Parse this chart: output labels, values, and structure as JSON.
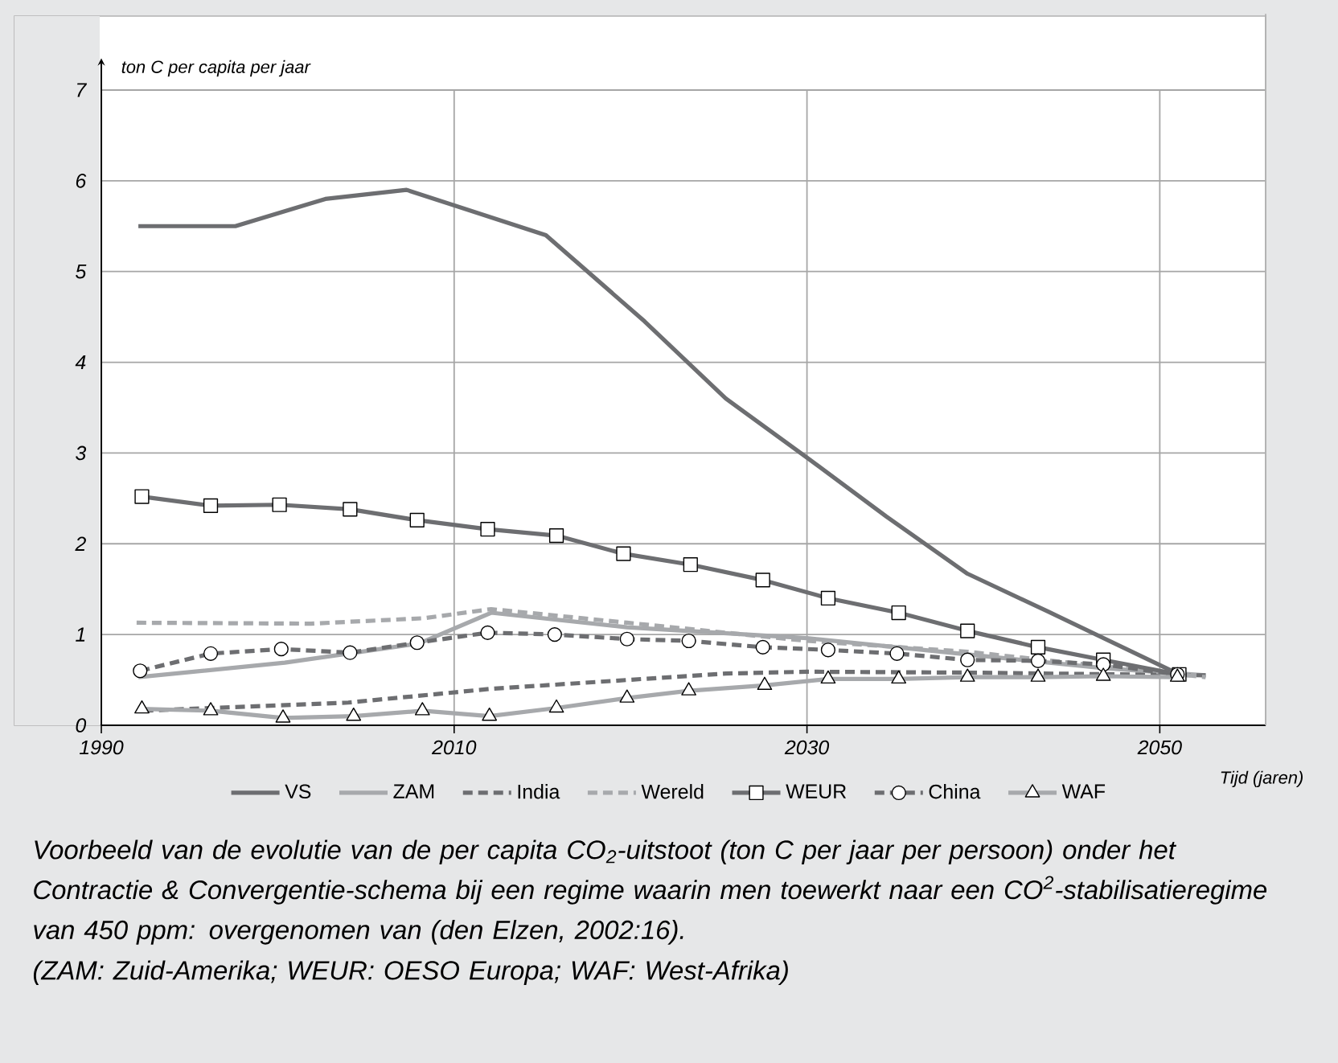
{
  "chart_data": {
    "type": "line",
    "ylabel": "ton C per capita per jaar",
    "xlabel": "Tijd (jaren)",
    "xlim": [
      1990,
      2056
    ],
    "xticks": [
      1990,
      2010,
      2030,
      2050
    ],
    "ylim": [
      0,
      7
    ],
    "yticks": [
      0,
      1,
      2,
      3,
      4,
      5,
      6,
      7
    ],
    "grid": true,
    "legend": "bottom",
    "series": [
      {
        "name": "VS",
        "color": "#6d6e71",
        "line_style": "solid",
        "marker": "none",
        "x": [
          1992.1,
          1997.6,
          2002.7,
          2007.3,
          2015.2,
          2020.8,
          2025.4,
          2030.0,
          2034.5,
          2039.1,
          2043.7,
          2051.0
        ],
        "values": [
          5.5,
          5.5,
          5.8,
          5.9,
          5.4,
          4.45,
          3.6,
          2.95,
          2.3,
          1.67,
          1.25,
          0.57
        ]
      },
      {
        "name": "ZAM",
        "color": "#a7a9ac",
        "line_style": "solid",
        "marker": "none",
        "x": [
          1992.1,
          2000.4,
          2008.0,
          2012.1,
          2019.8,
          2030.0,
          2039.1,
          2046.8,
          2052.6
        ],
        "values": [
          0.53,
          0.69,
          0.9,
          1.24,
          1.08,
          0.96,
          0.78,
          0.63,
          0.55
        ]
      },
      {
        "name": "India",
        "color": "#6d6e71",
        "line_style": "dashed",
        "marker": "none",
        "x": [
          1992.4,
          2004.0,
          2012.0,
          2025.4,
          2030.0,
          2039.1,
          2052.6
        ],
        "values": [
          0.16,
          0.25,
          0.4,
          0.57,
          0.59,
          0.58,
          0.55
        ]
      },
      {
        "name": "Wereld",
        "color": "#a7a9ac",
        "line_style": "dashed",
        "marker": "none",
        "x": [
          1992.0,
          2001.9,
          2008.3,
          2012.1,
          2019.8,
          2025.4,
          2030.0,
          2039.1,
          2046.8,
          2052.6
        ],
        "values": [
          1.13,
          1.12,
          1.18,
          1.28,
          1.13,
          1.02,
          0.93,
          0.81,
          0.65,
          0.53
        ]
      },
      {
        "name": "WEUR",
        "color": "#6d6e71",
        "line_style": "solid",
        "marker": "square",
        "x": [
          1992.3,
          1996.2,
          2000.1,
          2004.1,
          2007.9,
          2011.9,
          2015.8,
          2019.6,
          2023.4,
          2027.5,
          2031.2,
          2035.2,
          2039.1,
          2043.1,
          2046.8,
          2051.1
        ],
        "values": [
          2.52,
          2.42,
          2.43,
          2.38,
          2.26,
          2.16,
          2.09,
          1.89,
          1.77,
          1.6,
          1.4,
          1.24,
          1.04,
          0.86,
          0.72,
          0.56
        ]
      },
      {
        "name": "China",
        "color": "#6d6e71",
        "line_style": "dashed",
        "marker": "circle",
        "x": [
          1992.2,
          1996.2,
          2000.2,
          2004.1,
          2007.9,
          2011.9,
          2015.7,
          2019.8,
          2023.3,
          2027.5,
          2031.2,
          2035.1,
          2039.1,
          2043.1,
          2046.8,
          2051.0
        ],
        "values": [
          0.6,
          0.79,
          0.84,
          0.8,
          0.91,
          1.02,
          1.0,
          0.95,
          0.93,
          0.86,
          0.83,
          0.79,
          0.72,
          0.71,
          0.67,
          0.56
        ]
      },
      {
        "name": "WAF",
        "color": "#a7a9ac",
        "line_style": "solid",
        "marker": "triangle",
        "x": [
          1992.3,
          1996.2,
          2000.3,
          2004.3,
          2008.2,
          2012.0,
          2015.8,
          2019.8,
          2023.3,
          2027.6,
          2031.2,
          2035.2,
          2039.1,
          2043.1,
          2046.8,
          2051.0
        ],
        "values": [
          0.18,
          0.16,
          0.08,
          0.1,
          0.16,
          0.1,
          0.19,
          0.3,
          0.38,
          0.44,
          0.51,
          0.51,
          0.53,
          0.53,
          0.54,
          0.53
        ]
      }
    ],
    "annotations": [
      "*Voorbeeld van de evolutie van de per capita CO$_{2}$-uitstoot (ton C per jaar per persoon) onder het Contractie & Convergentie-schema bij een regime waarin men toewerkt naar een CO$^{2}$-stabilisatieregime van 450 ppm: overgenomen van (den Elzen, 2002:16).*",
      "*(ZAM: Zuid-Amerika; WEUR: OESO Europa; WAF: West-Afrika)*"
    ]
  }
}
